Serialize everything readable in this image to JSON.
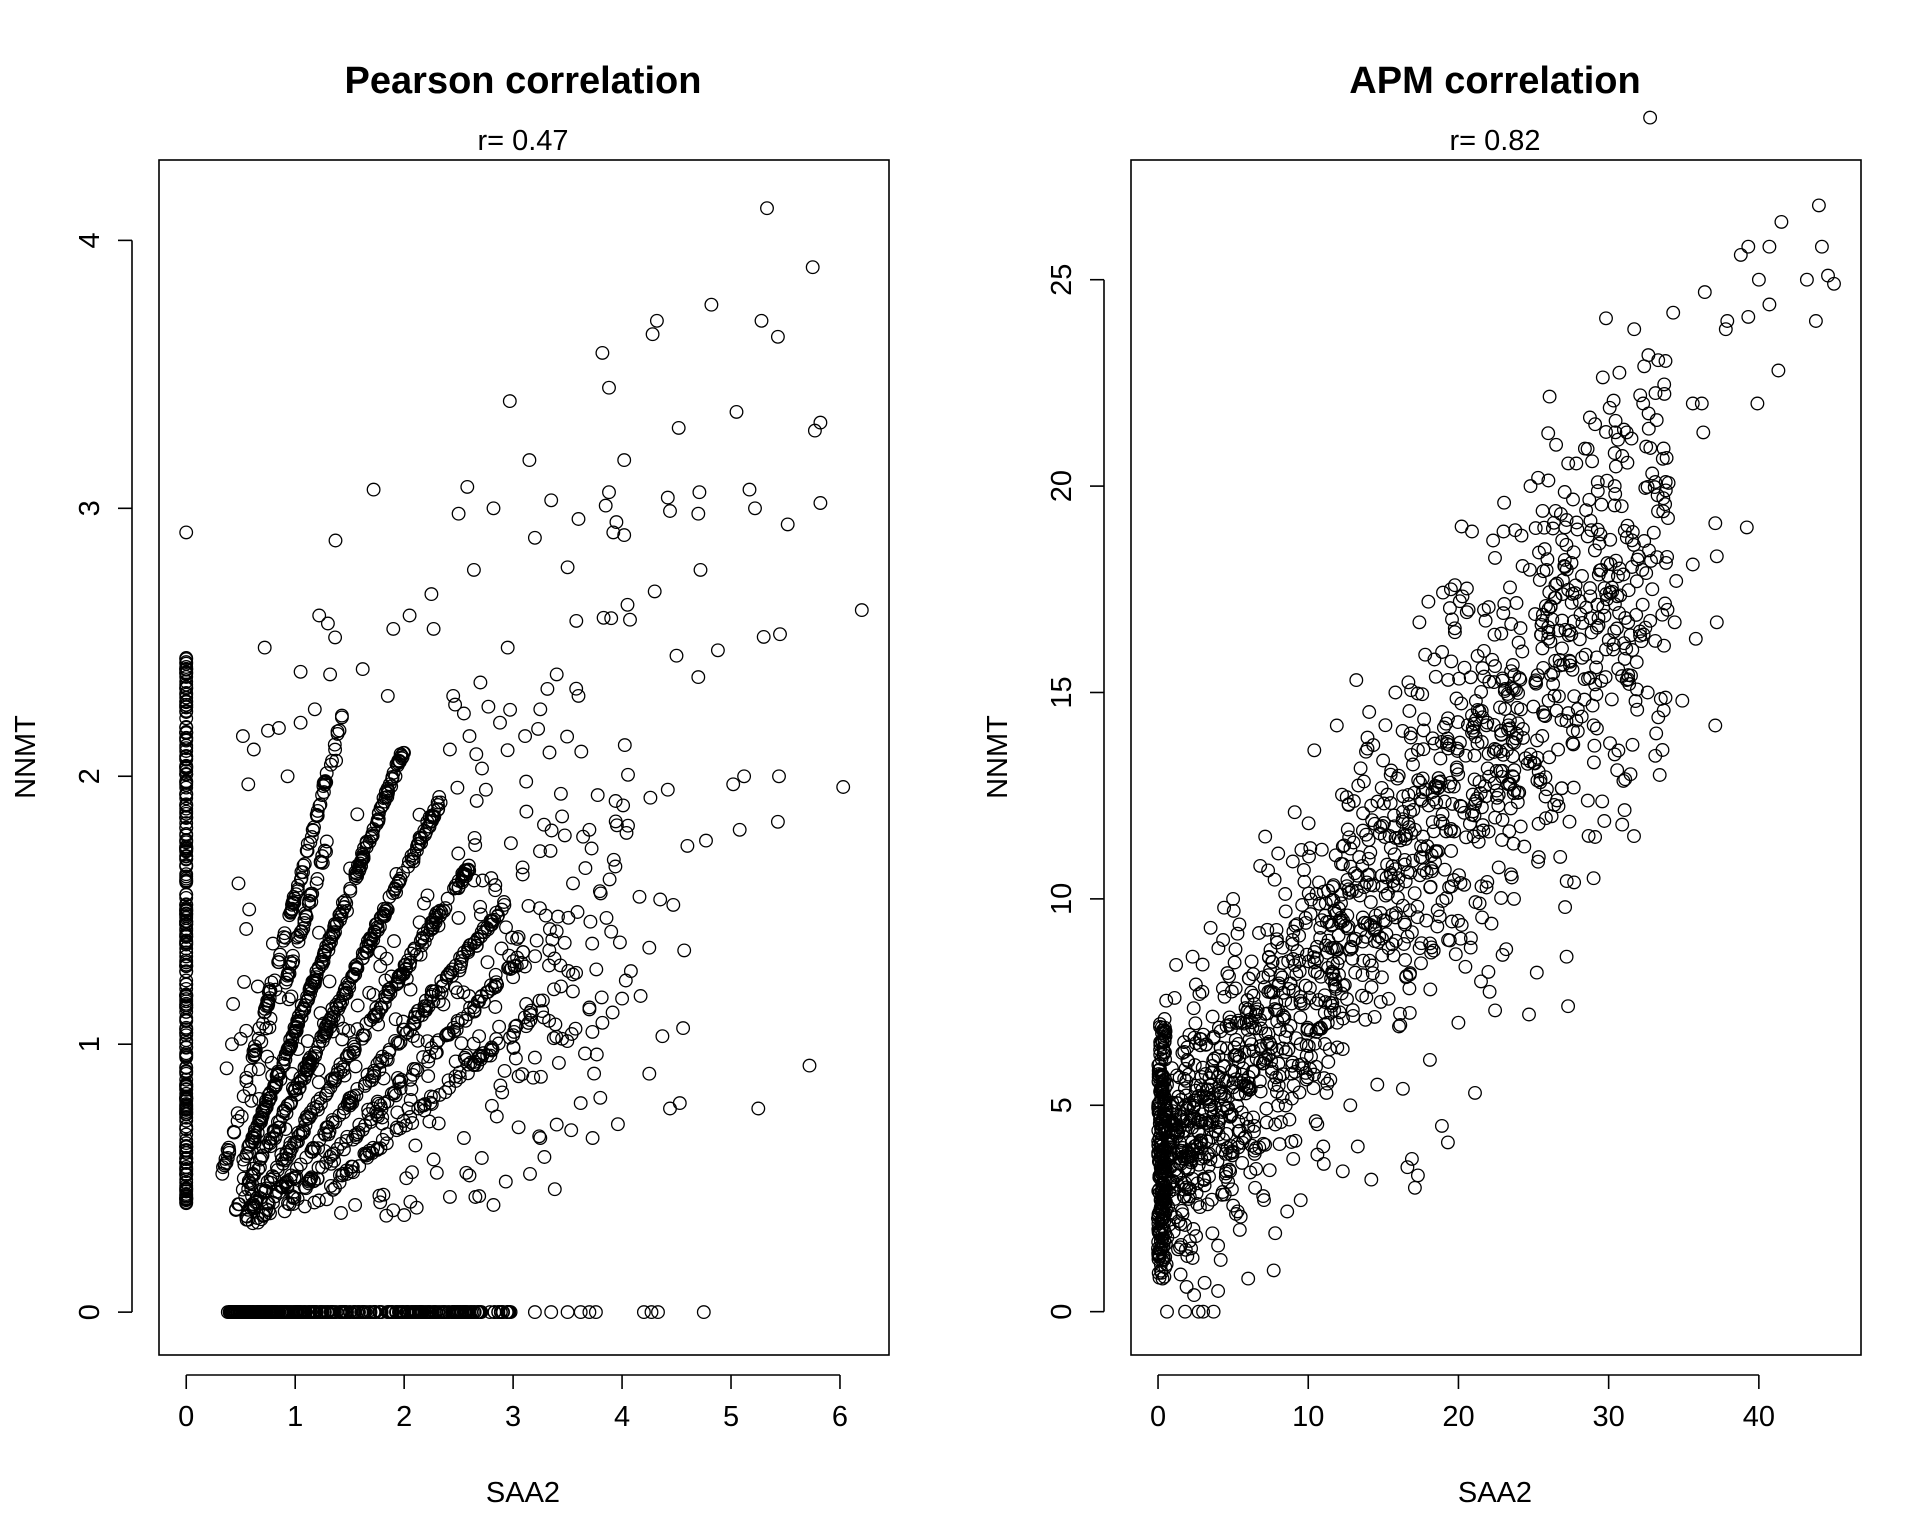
{
  "figure": {
    "background": "#ffffff",
    "ink": "#000000"
  },
  "chart_data": [
    {
      "type": "scatter",
      "title": "Pearson correlation",
      "subtitle": "r= 0.47",
      "xlabel": "SAA2",
      "ylabel": "NNMT",
      "xlim": [
        -0.25,
        6.45
      ],
      "ylim": [
        -0.16,
        4.3
      ],
      "xticks": [
        0,
        1,
        2,
        3,
        4,
        5,
        6
      ],
      "yticks": [
        0,
        1,
        2,
        3,
        4
      ],
      "grid": false,
      "marker": "open-circle",
      "pattern": "discretized expression counts: zero columns at x=0 and y=0, diagonal rays at ratios ~1.05, 0.82, 0.64, 0.52, 0.43, 0.35, plus scattered cloud",
      "points": [
        [
          5.33,
          4.12
        ],
        [
          5.75,
          3.9
        ],
        [
          4.82,
          3.76
        ],
        [
          4.32,
          3.7
        ],
        [
          5.28,
          3.7
        ],
        [
          4.28,
          3.65
        ],
        [
          5.43,
          3.64
        ],
        [
          3.82,
          3.58
        ],
        [
          3.88,
          3.45
        ],
        [
          2.97,
          3.4
        ],
        [
          5.05,
          3.36
        ],
        [
          5.82,
          3.32
        ],
        [
          5.77,
          3.29
        ],
        [
          4.52,
          3.3
        ],
        [
          3.15,
          3.18
        ],
        [
          4.02,
          3.18
        ],
        [
          1.72,
          3.07
        ],
        [
          2.58,
          3.08
        ],
        [
          3.88,
          3.06
        ],
        [
          4.71,
          3.06
        ],
        [
          5.17,
          3.07
        ],
        [
          4.42,
          3.04
        ],
        [
          3.35,
          3.03
        ],
        [
          5.82,
          3.02
        ],
        [
          2.82,
          3.0
        ],
        [
          3.85,
          3.01
        ],
        [
          4.44,
          2.99
        ],
        [
          5.22,
          3.0
        ],
        [
          2.5,
          2.98
        ],
        [
          3.6,
          2.96
        ],
        [
          4.7,
          2.98
        ],
        [
          5.52,
          2.94
        ],
        [
          0.0,
          2.91
        ],
        [
          1.37,
          2.88
        ],
        [
          3.2,
          2.89
        ],
        [
          3.92,
          2.91
        ],
        [
          4.02,
          2.9
        ],
        [
          2.64,
          2.77
        ],
        [
          3.5,
          2.78
        ],
        [
          4.72,
          2.77
        ],
        [
          6.2,
          2.62
        ],
        [
          4.05,
          2.64
        ],
        [
          4.88,
          2.47
        ],
        [
          5.3,
          2.52
        ],
        [
          5.45,
          2.53
        ],
        [
          4.5,
          2.45
        ],
        [
          3.58,
          2.58
        ],
        [
          3.9,
          2.59
        ],
        [
          4.3,
          2.69
        ],
        [
          4.7,
          2.37
        ],
        [
          6.03,
          1.96
        ],
        [
          5.02,
          1.97
        ],
        [
          5.12,
          2.0
        ],
        [
          5.44,
          2.0
        ],
        [
          5.08,
          1.8
        ],
        [
          5.43,
          1.83
        ],
        [
          4.6,
          1.74
        ],
        [
          4.77,
          1.76
        ],
        [
          4.26,
          1.92
        ],
        [
          4.42,
          1.95
        ],
        [
          4.16,
          1.55
        ],
        [
          4.35,
          1.54
        ],
        [
          4.47,
          1.52
        ],
        [
          3.9,
          1.42
        ],
        [
          3.98,
          1.38
        ],
        [
          4.25,
          1.36
        ],
        [
          4.57,
          1.35
        ],
        [
          4.17,
          1.18
        ],
        [
          4.0,
          1.17
        ],
        [
          3.7,
          1.13
        ],
        [
          3.82,
          1.08
        ],
        [
          4.37,
          1.03
        ],
        [
          4.56,
          1.06
        ],
        [
          5.72,
          0.92
        ],
        [
          4.25,
          0.89
        ],
        [
          5.25,
          0.76
        ],
        [
          4.44,
          0.76
        ],
        [
          4.53,
          0.78
        ],
        [
          3.8,
          0.8
        ],
        [
          3.62,
          0.78
        ],
        [
          3.73,
          0.65
        ],
        [
          3.25,
          0.65
        ],
        [
          2.82,
          0.4
        ],
        [
          2.42,
          0.43
        ],
        [
          1.9,
          0.38
        ],
        [
          1.78,
          0.41
        ],
        [
          1.55,
          0.4
        ],
        [
          1.42,
          0.37
        ],
        [
          2.57,
          0.52
        ],
        [
          2.6,
          0.51
        ],
        [
          2.3,
          0.52
        ],
        [
          2.02,
          0.5
        ],
        [
          2.85,
          0.73
        ],
        [
          3.05,
          0.69
        ],
        [
          3.4,
          0.7
        ],
        [
          2.25,
          2.68
        ],
        [
          2.27,
          2.55
        ],
        [
          2.05,
          2.6
        ],
        [
          1.9,
          2.55
        ],
        [
          1.3,
          2.57
        ],
        [
          1.22,
          2.6
        ],
        [
          1.05,
          2.39
        ],
        [
          0.72,
          2.48
        ],
        [
          1.32,
          2.38
        ],
        [
          0.85,
          2.18
        ],
        [
          0.75,
          2.17
        ],
        [
          1.05,
          2.2
        ],
        [
          1.18,
          2.25
        ],
        [
          0.52,
          2.15
        ],
        [
          0.62,
          2.1
        ],
        [
          0.93,
          2.0
        ],
        [
          0.57,
          1.97
        ],
        [
          0.48,
          1.6
        ],
        [
          0.55,
          1.43
        ],
        [
          0.43,
          1.15
        ],
        [
          0.37,
          0.91
        ],
        [
          0.42,
          1.0
        ],
        [
          0.5,
          1.02
        ],
        [
          0.55,
          1.05
        ],
        [
          1.85,
          2.3
        ],
        [
          1.62,
          2.4
        ],
        [
          2.45,
          2.3
        ],
        [
          2.7,
          2.35
        ],
        [
          2.95,
          2.48
        ],
        [
          2.88,
          2.2
        ],
        [
          2.6,
          2.15
        ],
        [
          2.42,
          2.1
        ],
        [
          3.25,
          2.25
        ],
        [
          3.4,
          2.38
        ],
        [
          3.6,
          2.3
        ],
        [
          3.12,
          1.98
        ],
        [
          3.45,
          1.85
        ],
        [
          3.7,
          1.8
        ],
        [
          3.55,
          1.6
        ],
        [
          3.3,
          1.48
        ],
        [
          3.05,
          1.4
        ],
        [
          3.38,
          1.32
        ],
        [
          3.55,
          1.26
        ],
        [
          3.12,
          1.15
        ],
        [
          3.28,
          1.1
        ],
        [
          3.45,
          1.02
        ],
        [
          3.2,
          0.95
        ],
        [
          3.05,
          0.88
        ],
        [
          2.9,
          0.82
        ],
        [
          3.42,
          0.93
        ],
        [
          2.75,
          1.95
        ],
        [
          2.98,
          1.75
        ],
        [
          2.8,
          1.62
        ],
        [
          2.92,
          1.52
        ],
        [
          3.0,
          1.25
        ]
      ]
    },
    {
      "type": "scatter",
      "title": "APM correlation",
      "subtitle": "r= 0.82",
      "xlabel": "SAA2",
      "ylabel": "NNMT",
      "xlim": [
        -1.8,
        46.8
      ],
      "ylim": [
        -1.05,
        27.9
      ],
      "xticks": [
        0,
        10,
        20,
        30,
        40
      ],
      "yticks": [
        0,
        5,
        10,
        15,
        20,
        25
      ],
      "grid": false,
      "marker": "open-circle",
      "pattern": "dense linear cloud, NNMT ~ 3.3 + 0.45*SAA2 with spread",
      "points": [
        [
          44.0,
          26.8
        ],
        [
          41.5,
          26.4
        ],
        [
          39.3,
          25.8
        ],
        [
          44.2,
          25.8
        ],
        [
          38.8,
          25.6
        ],
        [
          40.7,
          25.8
        ],
        [
          44.6,
          25.1
        ],
        [
          45.0,
          24.9
        ],
        [
          43.2,
          25.0
        ],
        [
          40.0,
          25.0
        ],
        [
          36.4,
          24.7
        ],
        [
          40.7,
          24.4
        ],
        [
          34.3,
          24.2
        ],
        [
          39.3,
          24.1
        ],
        [
          37.9,
          24.0
        ],
        [
          37.8,
          23.8
        ],
        [
          43.8,
          24.0
        ],
        [
          31.7,
          23.8
        ],
        [
          41.3,
          22.8
        ],
        [
          35.6,
          22.0
        ],
        [
          36.2,
          22.0
        ],
        [
          39.9,
          22.0
        ],
        [
          31.2,
          21.3
        ],
        [
          32.3,
          22.0
        ],
        [
          32.1,
          22.2
        ],
        [
          33.2,
          21.6
        ],
        [
          36.3,
          21.3
        ],
        [
          29.1,
          21.5
        ],
        [
          26.5,
          21.0
        ],
        [
          28.6,
          20.9
        ],
        [
          28.9,
          20.6
        ],
        [
          30.4,
          20.8
        ],
        [
          33.1,
          20.1
        ],
        [
          33.8,
          20.1
        ],
        [
          30.4,
          20.0
        ],
        [
          25.3,
          20.2
        ],
        [
          24.8,
          20.0
        ],
        [
          25.6,
          19.4
        ],
        [
          39.2,
          19.0
        ],
        [
          37.1,
          19.1
        ],
        [
          23.0,
          18.9
        ],
        [
          24.2,
          18.8
        ],
        [
          27.1,
          19.0
        ],
        [
          30.1,
          18.7
        ],
        [
          32.0,
          18.3
        ],
        [
          37.2,
          18.3
        ],
        [
          35.6,
          18.1
        ],
        [
          34.5,
          17.7
        ],
        [
          20.9,
          18.9
        ],
        [
          18.0,
          17.2
        ],
        [
          17.4,
          16.7
        ],
        [
          19.5,
          17.5
        ],
        [
          21.7,
          17.0
        ],
        [
          22.4,
          16.4
        ],
        [
          25.1,
          16.9
        ],
        [
          26.7,
          16.5
        ],
        [
          28.8,
          16.8
        ],
        [
          31.3,
          16.7
        ],
        [
          34.4,
          16.7
        ],
        [
          35.8,
          16.3
        ],
        [
          37.2,
          16.7
        ],
        [
          31.2,
          15.3
        ],
        [
          32.6,
          15.0
        ],
        [
          34.9,
          14.8
        ],
        [
          37.1,
          14.2
        ],
        [
          33.4,
          13.0
        ],
        [
          31.1,
          12.9
        ],
        [
          30.4,
          13.5
        ],
        [
          30.9,
          11.8
        ],
        [
          29.1,
          11.5
        ],
        [
          29.0,
          10.5
        ],
        [
          27.1,
          9.8
        ],
        [
          27.7,
          10.4
        ],
        [
          27.2,
          8.6
        ],
        [
          27.3,
          7.4
        ],
        [
          24.7,
          7.2
        ],
        [
          21.1,
          5.3
        ],
        [
          19.3,
          4.1
        ],
        [
          18.9,
          4.5
        ],
        [
          16.9,
          3.7
        ],
        [
          17.3,
          3.3
        ],
        [
          16.6,
          3.5
        ],
        [
          17.1,
          3.0
        ],
        [
          14.2,
          3.2
        ],
        [
          13.3,
          4.0
        ],
        [
          12.3,
          3.4
        ],
        [
          9.5,
          2.7
        ],
        [
          7.8,
          1.9
        ],
        [
          7.7,
          1.0
        ],
        [
          6.0,
          0.8
        ],
        [
          4.0,
          0.5
        ],
        [
          3.7,
          0.0
        ],
        [
          3.0,
          0.0
        ],
        [
          2.7,
          0.0
        ],
        [
          1.8,
          0.0
        ],
        [
          0.6,
          0.0
        ],
        [
          1.9,
          0.6
        ],
        [
          2.4,
          0.4
        ],
        [
          3.1,
          0.7
        ],
        [
          1.5,
          0.9
        ],
        [
          0.3,
          0.8
        ],
        [
          0.1,
          1.9
        ],
        [
          0.4,
          3.2
        ],
        [
          0.2,
          4.6
        ],
        [
          0.6,
          5.5
        ],
        [
          0.1,
          6.0
        ],
        [
          0.5,
          6.8
        ],
        [
          1.1,
          7.6
        ],
        [
          1.2,
          8.4
        ],
        [
          2.3,
          8.6
        ],
        [
          3.5,
          9.3
        ],
        [
          5.0,
          10.0
        ],
        [
          6.8,
          10.8
        ],
        [
          8.0,
          11.1
        ],
        [
          9.1,
          12.1
        ],
        [
          10.4,
          13.6
        ],
        [
          11.9,
          14.2
        ],
        [
          13.2,
          15.3
        ],
        [
          15.8,
          15.0
        ],
        [
          18.4,
          15.8
        ],
        [
          20.4,
          15.6
        ],
        [
          21.6,
          14.4
        ],
        [
          23.1,
          14.6
        ],
        [
          22.4,
          12.8
        ],
        [
          24.8,
          13.5
        ],
        [
          26.2,
          12.0
        ],
        [
          25.3,
          10.9
        ],
        [
          23.7,
          10.0
        ],
        [
          22.2,
          9.4
        ],
        [
          21.5,
          8.0
        ],
        [
          20.0,
          7.0
        ],
        [
          18.1,
          6.1
        ],
        [
          16.3,
          5.4
        ],
        [
          14.6,
          5.5
        ],
        [
          12.8,
          5.0
        ],
        [
          11.0,
          4.0
        ],
        [
          9.0,
          3.7
        ],
        [
          7.0,
          2.8
        ],
        [
          5.5,
          2.3
        ],
        [
          4.0,
          1.6
        ],
        [
          2.3,
          1.3
        ],
        [
          19.6,
          12.3
        ],
        [
          17.6,
          11.0
        ],
        [
          16.0,
          10.5
        ],
        [
          14.5,
          9.6
        ],
        [
          13.0,
          9.0
        ],
        [
          11.6,
          8.2
        ],
        [
          10.1,
          7.6
        ],
        [
          8.6,
          6.8
        ],
        [
          7.1,
          6.1
        ],
        [
          5.7,
          5.6
        ],
        [
          4.2,
          4.7
        ],
        [
          2.8,
          4.1
        ],
        [
          1.4,
          3.6
        ],
        [
          26.0,
          14.8
        ],
        [
          24.3,
          13.9
        ],
        [
          22.8,
          13.1
        ],
        [
          21.1,
          12.3
        ],
        [
          18.8,
          13.4
        ],
        [
          16.7,
          12.3
        ],
        [
          15.1,
          11.5
        ],
        [
          13.6,
          10.8
        ],
        [
          12.2,
          10.1
        ],
        [
          10.8,
          9.3
        ],
        [
          9.4,
          8.5
        ],
        [
          8.0,
          7.9
        ],
        [
          6.5,
          7.2
        ],
        [
          5.1,
          6.4
        ],
        [
          3.6,
          5.8
        ],
        [
          2.1,
          5.0
        ],
        [
          12.6,
          9.6
        ],
        [
          13.9,
          10.4
        ],
        [
          14.3,
          8.2
        ],
        [
          15.6,
          8.9
        ],
        [
          11.3,
          7.0
        ],
        [
          9.9,
          6.2
        ],
        [
          8.3,
          5.2
        ],
        [
          6.4,
          4.5
        ],
        [
          4.8,
          3.4
        ],
        [
          3.3,
          2.6
        ],
        [
          1.8,
          2.1
        ]
      ]
    }
  ]
}
